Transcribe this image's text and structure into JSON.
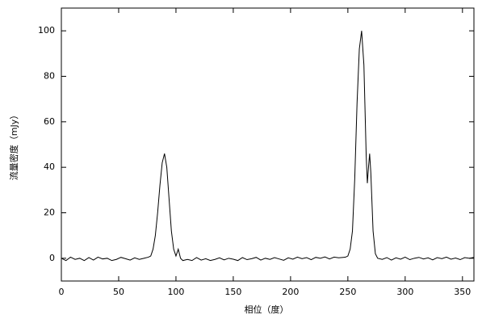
{
  "chart_data": {
    "type": "line",
    "x_label": "相位（度）",
    "y_label": "流量密度（mJy）",
    "xlim": [
      0,
      360
    ],
    "ylim": [
      -10,
      110
    ],
    "xticks": [
      0,
      50,
      100,
      150,
      200,
      250,
      300,
      350
    ],
    "yticks": [
      0,
      20,
      40,
      60,
      80,
      100
    ],
    "color": "#000000",
    "x": [
      0,
      4,
      8,
      12,
      16,
      20,
      24,
      28,
      32,
      36,
      40,
      44,
      48,
      52,
      56,
      60,
      64,
      68,
      72,
      76,
      78,
      80,
      82,
      84,
      86,
      88,
      90,
      92,
      94,
      96,
      98,
      100,
      102,
      104,
      106,
      110,
      114,
      118,
      122,
      126,
      130,
      134,
      138,
      142,
      146,
      150,
      154,
      158,
      162,
      166,
      170,
      174,
      178,
      182,
      186,
      190,
      194,
      198,
      202,
      206,
      210,
      214,
      218,
      222,
      226,
      230,
      234,
      238,
      242,
      246,
      248,
      250,
      252,
      254,
      256,
      258,
      260,
      262,
      264,
      266,
      267,
      268,
      269,
      270,
      272,
      274,
      276,
      280,
      284,
      288,
      292,
      296,
      300,
      304,
      308,
      312,
      316,
      320,
      324,
      328,
      332,
      336,
      340,
      344,
      348,
      352,
      356,
      360
    ],
    "values": [
      0,
      -1,
      0.5,
      -0.5,
      0,
      -1,
      0.3,
      -0.8,
      0.5,
      -0.3,
      0,
      -1,
      -0.5,
      0.4,
      -0.2,
      -0.8,
      0.2,
      -0.5,
      0,
      0.5,
      1,
      4,
      10,
      20,
      32,
      42,
      46,
      40,
      26,
      12,
      4,
      1,
      4,
      0,
      -1,
      -0.5,
      -1,
      0.3,
      -0.8,
      -0.2,
      -1,
      -0.5,
      0.2,
      -0.7,
      0,
      -0.4,
      -1,
      0.3,
      -0.6,
      -0.2,
      0.4,
      -0.8,
      0,
      -0.5,
      0.3,
      -0.3,
      -0.9,
      0.2,
      -0.4,
      0.5,
      -0.2,
      0.3,
      -0.6,
      0.4,
      0,
      0.6,
      -0.3,
      0.5,
      0.2,
      0.4,
      0.5,
      1,
      4,
      12,
      35,
      68,
      92,
      100,
      85,
      45,
      33,
      40,
      46,
      38,
      12,
      2,
      0,
      -0.5,
      0.3,
      -0.8,
      0.2,
      -0.4,
      0.5,
      -0.6,
      0,
      0.4,
      -0.3,
      0.2,
      -0.7,
      0.3,
      -0.2,
      0.5,
      -0.4,
      0.1,
      -0.6,
      0.3,
      0,
      0.4
    ]
  }
}
